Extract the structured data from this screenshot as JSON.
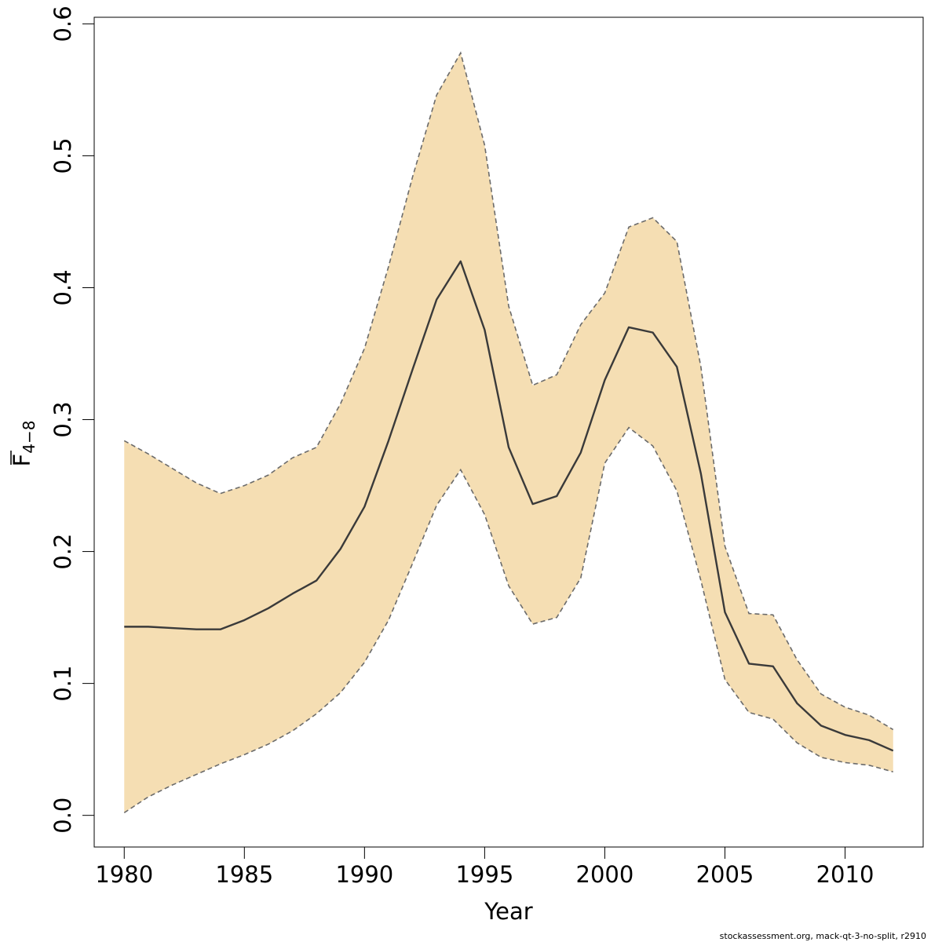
{
  "chart_data": {
    "type": "area",
    "xlabel": "Year",
    "ylabel_main": "F",
    "ylabel_sub": "4−8",
    "xlim": [
      1978.75,
      2013.25
    ],
    "ylim": [
      -0.024,
      0.605
    ],
    "xticks": [
      1980,
      1985,
      1990,
      1995,
      2000,
      2005,
      2010
    ],
    "yticks": [
      0.0,
      0.1,
      0.2,
      0.3,
      0.4,
      0.5,
      0.6
    ],
    "ytick_labels": [
      "0.0",
      "0.1",
      "0.2",
      "0.3",
      "0.4",
      "0.5",
      "0.6"
    ],
    "grid": false,
    "x": [
      1980,
      1981,
      1982,
      1983,
      1984,
      1985,
      1986,
      1987,
      1988,
      1989,
      1990,
      1991,
      1992,
      1993,
      1994,
      1995,
      1996,
      1997,
      1998,
      1999,
      2000,
      2001,
      2002,
      2003,
      2004,
      2005,
      2006,
      2007,
      2008,
      2009,
      2010,
      2011,
      2012
    ],
    "series": [
      {
        "values": [
          0.143,
          0.143,
          0.142,
          0.141,
          0.141,
          0.148,
          0.157,
          0.168,
          0.178,
          0.202,
          0.234,
          0.284,
          0.338,
          0.391,
          0.42,
          0.368,
          0.279,
          0.236,
          0.242,
          0.275,
          0.33,
          0.37,
          0.366,
          0.34,
          0.259,
          0.154,
          0.115,
          0.113,
          0.085,
          0.068,
          0.061,
          0.057,
          0.049
        ]
      }
    ],
    "band_upper": [
      0.284,
      0.274,
      0.263,
      0.252,
      0.244,
      0.25,
      0.258,
      0.271,
      0.279,
      0.312,
      0.354,
      0.416,
      0.484,
      0.546,
      0.578,
      0.508,
      0.386,
      0.326,
      0.334,
      0.372,
      0.396,
      0.446,
      0.453,
      0.435,
      0.34,
      0.204,
      0.153,
      0.152,
      0.118,
      0.092,
      0.082,
      0.076,
      0.065
    ],
    "band_lower": [
      0.002,
      0.014,
      0.023,
      0.031,
      0.039,
      0.046,
      0.054,
      0.064,
      0.077,
      0.093,
      0.116,
      0.148,
      0.191,
      0.235,
      0.262,
      0.228,
      0.174,
      0.145,
      0.15,
      0.18,
      0.267,
      0.294,
      0.28,
      0.246,
      0.178,
      0.103,
      0.078,
      0.073,
      0.055,
      0.044,
      0.04,
      0.038,
      0.033
    ],
    "colors": {
      "band_fill": "#f5deb3",
      "band_edge": "#6b6b6b",
      "line": "#3a3a3a",
      "frame": "#000000"
    }
  },
  "footer_text": "stockassessment.org, mack-qt-3-no-split, r2910"
}
